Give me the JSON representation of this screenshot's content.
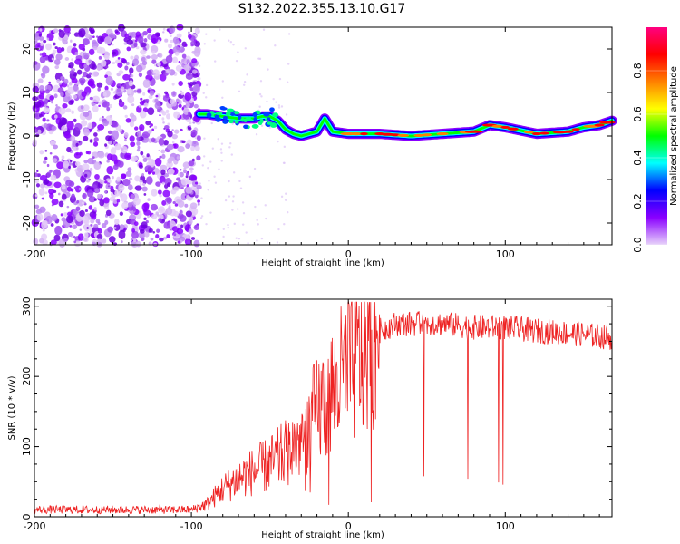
{
  "title": "S132.2022.355.13.10.G17",
  "chart_data": [
    {
      "type": "heatmap",
      "xlabel": "Height of straight line (km)",
      "ylabel": "Frequency (Hz)",
      "xlim": [
        -200,
        168
      ],
      "ylim": [
        -25,
        25
      ],
      "x_ticks": [
        -200,
        -100,
        0,
        100
      ],
      "y_ticks": [
        -20,
        -10,
        0,
        10,
        20
      ],
      "colorbar": {
        "label": "Normalized spectral amplitude",
        "range": [
          0,
          1
        ],
        "ticks": [
          "0.0",
          "0.2",
          "0.4",
          "0.6",
          "0.8"
        ],
        "colors": [
          "#e8d4fa",
          "#8a00ff",
          "#0000ff",
          "#00ffff",
          "#00ff00",
          "#ffff00",
          "#ff8000",
          "#ff0000",
          "#ff0080"
        ]
      },
      "ridge": {
        "x": [
          -90,
          -80,
          -70,
          -60,
          -55,
          -50,
          -45,
          -40,
          -35,
          -30,
          -25,
          -20,
          -15,
          -10,
          0,
          20,
          40,
          60,
          80,
          90,
          100,
          120,
          140,
          150,
          160,
          168
        ],
        "y": [
          5,
          4.5,
          4,
          4,
          4.5,
          4.5,
          3.5,
          1.5,
          0.5,
          0,
          0.5,
          1,
          4,
          1,
          0.5,
          0.5,
          0,
          0.5,
          1,
          2.5,
          2,
          0.5,
          1,
          2,
          2.5,
          3.5
        ]
      }
    },
    {
      "type": "line",
      "xlabel": "Height of straight line (km)",
      "ylabel": "SNR (10 * v/v)",
      "xlim": [
        -200,
        168
      ],
      "ylim": [
        0,
        310
      ],
      "x_ticks": [
        -200,
        -100,
        0,
        100
      ],
      "y_ticks": [
        0,
        100,
        200,
        300
      ],
      "color": "#ee2222",
      "envelope": {
        "x": [
          -200,
          -100,
          -90,
          -80,
          -70,
          -60,
          -50,
          -40,
          -30,
          -20,
          -10,
          0,
          10,
          20,
          30,
          40,
          60,
          80,
          100,
          120,
          140,
          168
        ],
        "y": [
          10,
          10,
          18,
          40,
          55,
          65,
          75,
          90,
          110,
          150,
          180,
          210,
          240,
          265,
          275,
          275,
          275,
          270,
          270,
          265,
          262,
          255
        ]
      },
      "dropouts": {
        "x_range": [
          45,
          100
        ],
        "min_value": 45
      }
    }
  ]
}
